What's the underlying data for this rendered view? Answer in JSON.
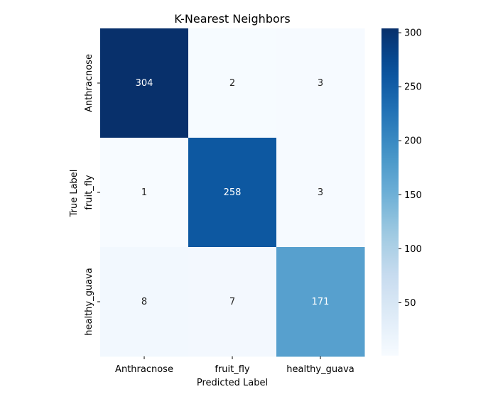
{
  "chart_data": {
    "type": "heatmap",
    "title": "K-Nearest Neighbors",
    "xlabel": "Predicted Label",
    "ylabel": "True Label",
    "x_categories": [
      "Anthracnose",
      "fruit_fly",
      "healthy_guava"
    ],
    "y_categories": [
      "Anthracnose",
      "fruit_fly",
      "healthy_guava"
    ],
    "matrix": [
      [
        304,
        2,
        3
      ],
      [
        1,
        258,
        3
      ],
      [
        8,
        7,
        171
      ]
    ],
    "colormap": "Blues",
    "colorbar": {
      "min": 1,
      "max": 304,
      "ticks": [
        50,
        100,
        150,
        200,
        250,
        300
      ]
    }
  },
  "colors": {
    "blues_low": "#f7fbff",
    "blues_high": "#08306b",
    "text_dark": "#262626",
    "text_light": "#ffffff"
  }
}
